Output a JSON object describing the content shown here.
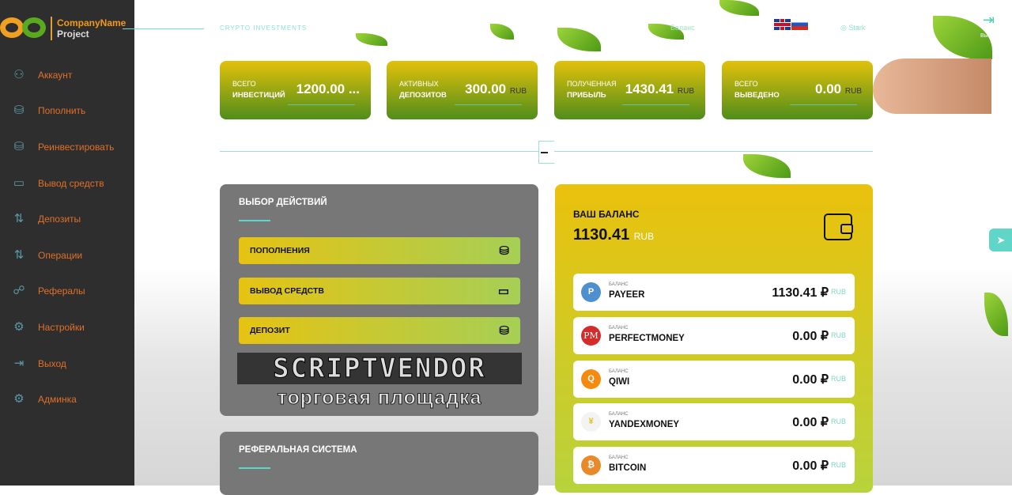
{
  "brand": {
    "name": "CompanyName",
    "sub": "Project"
  },
  "header": {
    "tagline": "CRYPTO INVESTMENTS",
    "balance_link": "Баланс",
    "user": "Stark",
    "logout_label": "Выход"
  },
  "sidebar": {
    "items": [
      {
        "label": "Аккаунт",
        "icon": "user-icon"
      },
      {
        "label": "Пополнить",
        "icon": "coins-hand-icon"
      },
      {
        "label": "Реинвестировать",
        "icon": "coins-hand-icon"
      },
      {
        "label": "Вывод средств",
        "icon": "wallet-icon"
      },
      {
        "label": "Депозиты",
        "icon": "exchange-icon"
      },
      {
        "label": "Операции",
        "icon": "exchange-icon"
      },
      {
        "label": "Рефералы",
        "icon": "hierarchy-icon"
      },
      {
        "label": "Настройки",
        "icon": "gear-icon"
      },
      {
        "label": "Выход",
        "icon": "logout-icon"
      },
      {
        "label": "Админка",
        "icon": "gear-icon"
      }
    ]
  },
  "stats": [
    {
      "l1": "ВСЕГО",
      "l2": "ИНВЕСТИЦИЙ",
      "value": "1200.00 ...",
      "unit": ""
    },
    {
      "l1": "АКТИВНЫХ",
      "l2": "ДЕПОЗИТОВ",
      "value": "300.00",
      "unit": "RUB"
    },
    {
      "l1": "ПОЛУЧЕННАЯ",
      "l2": "ПРИБЫЛЬ",
      "value": "1430.41",
      "unit": "RUB"
    },
    {
      "l1": "ВСЕГО",
      "l2": "ВЫВЕДЕНО",
      "value": "0.00",
      "unit": "RUB"
    }
  ],
  "actions": {
    "title": "ВЫБОР ДЕЙСТВИЙ",
    "buttons": [
      "ПОПОЛНЕНИЯ",
      "ВЫВОД СРЕДСТВ",
      "ДЕПОЗИТ"
    ]
  },
  "referral": {
    "title": "РЕФЕРАЛЬНАЯ СИСТЕМА"
  },
  "balance": {
    "title": "ВАШ БАЛАНС",
    "value": "1130.41",
    "unit": "RUB",
    "rows": [
      {
        "label": "БАЛАНС",
        "name": "PAYEER",
        "amount": "1130.41 ₽",
        "cur": "RUB",
        "badge": "P",
        "color": "#4e8fd0"
      },
      {
        "label": "БАЛАНС",
        "name": "PERFECTMONEY",
        "amount": "0.00 ₽",
        "cur": "RUB",
        "badge": "PM",
        "color": "#d42b2b"
      },
      {
        "label": "БАЛАНС",
        "name": "QIWI",
        "amount": "0.00 ₽",
        "cur": "RUB",
        "badge": "Q",
        "color": "#f58a0f"
      },
      {
        "label": "БАЛАНС",
        "name": "YANDEXMONEY",
        "amount": "0.00 ₽",
        "cur": "RUB",
        "badge": "¥",
        "color": "#f3f3f3"
      },
      {
        "label": "БАЛАНС",
        "name": "BITCOIN",
        "amount": "0.00 ₽",
        "cur": "RUB",
        "badge": "₿",
        "color": "#e8892a"
      }
    ]
  },
  "watermark": {
    "line1": "SCRIPTVENDOR",
    "line2": "торговая площадка"
  }
}
